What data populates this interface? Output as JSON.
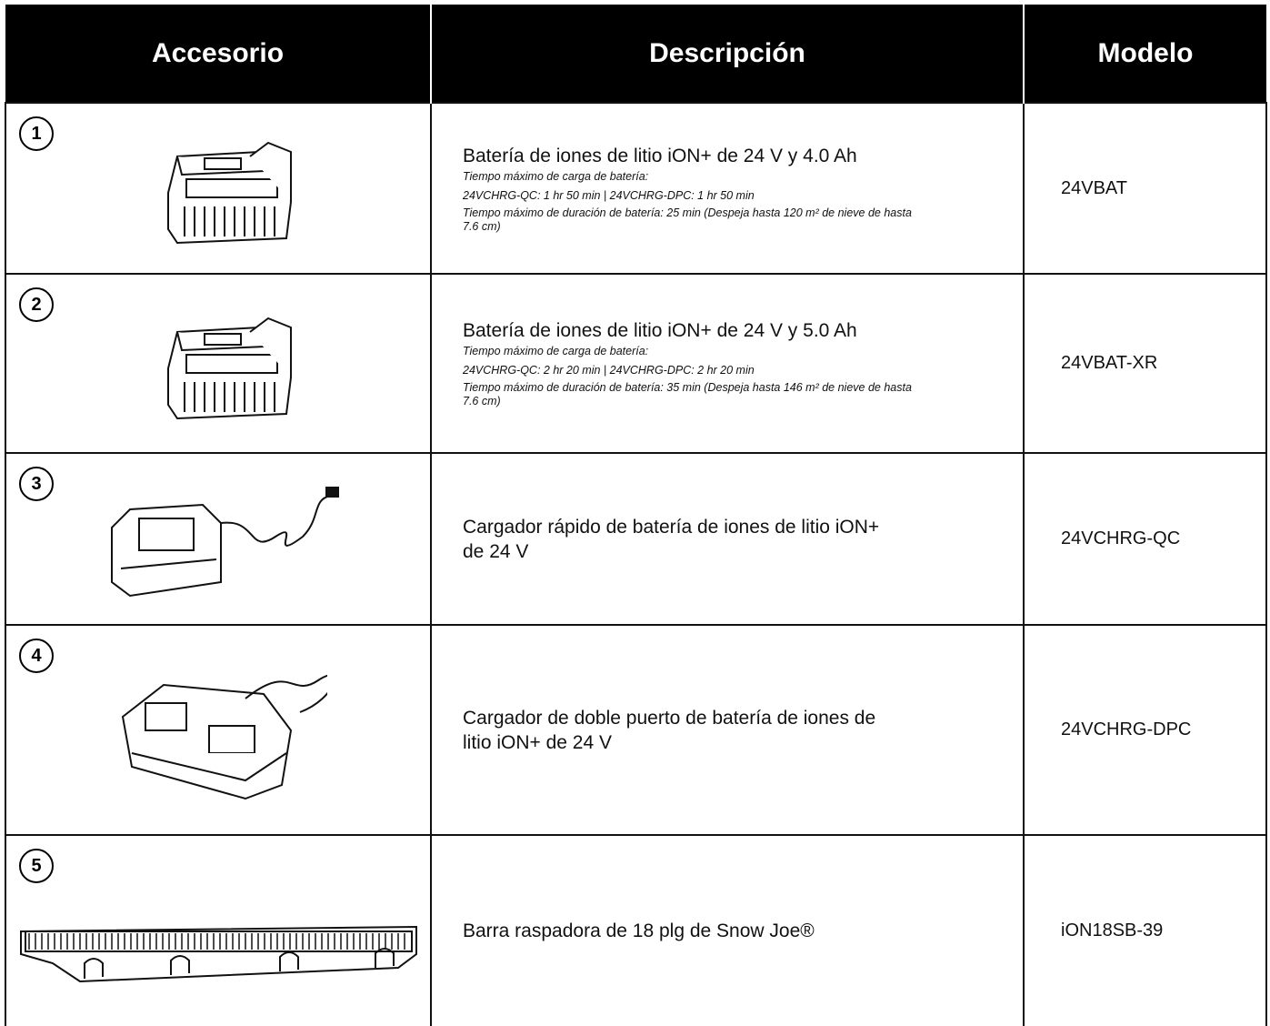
{
  "header": {
    "columns": [
      "Accesorio",
      "Descripción",
      "Modelo"
    ]
  },
  "rows": [
    {
      "number": "1",
      "title": "Batería de iones de litio iON+ de 24 V y 4.0 Ah",
      "notes": [
        "Tiempo máximo de carga de batería:",
        "24VCHRG-QC: 1 hr 50 min | 24VCHRG-DPC: 1 hr 50 min",
        "Tiempo máximo de duración de batería: 25 min (Despeja hasta 120 m² de nieve de hasta 7.6 cm)"
      ],
      "model": "24VBAT"
    },
    {
      "number": "2",
      "title": "Batería de iones de litio iON+ de 24 V y 5.0 Ah",
      "notes": [
        "Tiempo máximo de carga de batería:",
        "24VCHRG-QC: 2 hr 20 min | 24VCHRG-DPC: 2 hr 20 min",
        "Tiempo máximo de duración de batería: 35 min (Despeja hasta 146 m² de nieve de hasta 7.6 cm)"
      ],
      "model": "24VBAT-XR"
    },
    {
      "number": "3",
      "title": "Cargador rápido de batería de iones de litio iON+ de 24 V",
      "notes": [],
      "model": "24VCHRG-QC"
    },
    {
      "number": "4",
      "title": "Cargador de doble puerto de batería de iones de litio iON+ de 24 V",
      "notes": [],
      "model": "24VCHRG-DPC"
    },
    {
      "number": "5",
      "title": "Barra raspadora de 18 plg de Snow Joe®",
      "notes": [],
      "model": "iON18SB-39"
    }
  ]
}
